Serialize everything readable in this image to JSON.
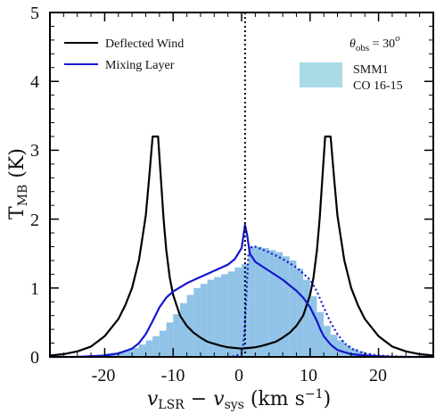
{
  "chart_data": {
    "type": "line",
    "xlabel": "v_LSR − v_sys (km s⁻¹)",
    "ylabel": "T_MB (K)",
    "xlim": [
      -28,
      28
    ],
    "ylim": [
      0,
      5
    ],
    "x_ticks": [
      -20,
      -10,
      0,
      10,
      20
    ],
    "y_ticks": [
      0,
      1,
      2,
      3,
      4,
      5
    ],
    "vline_x": 0.5,
    "annotation": "θ_obs = 30°",
    "legend": [
      {
        "name": "Deflected Wind",
        "color": "#000000",
        "style": "line"
      },
      {
        "name": "Mixing Layer",
        "color": "#1515d0",
        "style": "line"
      },
      {
        "name": "SMM1\nCO 16-15",
        "color": "#9ccfe6",
        "style": "patch"
      }
    ],
    "legend_patch_label_1": "SMM1",
    "legend_patch_label_2": "CO 16-15",
    "histogram": {
      "name": "SMM1 CO 16-15",
      "color": "#7db9e3",
      "bin_width": 1.0,
      "bins_left": [
        -24,
        -23,
        -22,
        -21,
        -20,
        -19,
        -18,
        -17,
        -16,
        -15,
        -14,
        -13,
        -12,
        -11,
        -10,
        -9,
        -8,
        -7,
        -6,
        -5,
        -4,
        -3,
        -2,
        -1,
        0,
        1,
        2,
        3,
        4,
        5,
        6,
        7,
        8,
        9,
        10,
        11,
        12,
        13,
        14,
        15,
        16,
        17,
        18,
        19,
        20,
        21,
        22,
        23
      ],
      "values": [
        0.0,
        0.01,
        0.02,
        0.03,
        0.05,
        0.06,
        0.08,
        0.1,
        0.13,
        0.18,
        0.24,
        0.3,
        0.38,
        0.5,
        0.62,
        0.78,
        0.9,
        1.0,
        1.06,
        1.12,
        1.16,
        1.2,
        1.24,
        1.3,
        1.35,
        1.6,
        1.6,
        1.58,
        1.55,
        1.52,
        1.46,
        1.4,
        1.28,
        1.12,
        0.88,
        0.65,
        0.45,
        0.32,
        0.24,
        0.17,
        0.12,
        0.08,
        0.05,
        0.03,
        0.02,
        0.01,
        0.0,
        0.0
      ]
    },
    "series": [
      {
        "name": "Deflected Wind",
        "color": "#000000",
        "dash": "none",
        "x": [
          -28,
          -26,
          -24,
          -22,
          -20,
          -18,
          -17,
          -16,
          -15,
          -14,
          -13.5,
          -13,
          -12.6,
          -12.2,
          -11.8,
          -11.4,
          -11,
          -10.5,
          -10,
          -9,
          -8,
          -7,
          -6,
          -5,
          -4,
          -3,
          -2,
          -1,
          0,
          1,
          2,
          3,
          4,
          5,
          6,
          7,
          8,
          9,
          10,
          10.5,
          11,
          11.4,
          11.8,
          12.2,
          12.6,
          13,
          13.5,
          14,
          15,
          16,
          17,
          18,
          20,
          22,
          24,
          26,
          28
        ],
        "y": [
          0.02,
          0.04,
          0.08,
          0.15,
          0.3,
          0.55,
          0.75,
          1.0,
          1.4,
          2.05,
          2.6,
          3.2,
          3.2,
          3.2,
          2.6,
          2.0,
          1.55,
          1.15,
          0.9,
          0.6,
          0.45,
          0.35,
          0.28,
          0.22,
          0.19,
          0.16,
          0.14,
          0.13,
          0.12,
          0.13,
          0.14,
          0.16,
          0.19,
          0.22,
          0.28,
          0.35,
          0.45,
          0.6,
          0.9,
          1.15,
          1.55,
          2.0,
          2.6,
          3.2,
          3.2,
          3.2,
          2.6,
          2.05,
          1.4,
          1.0,
          0.75,
          0.55,
          0.3,
          0.15,
          0.08,
          0.04,
          0.02
        ]
      },
      {
        "name": "Mixing Layer",
        "color": "#1515d0",
        "dash": "none",
        "x": [
          -28,
          -24,
          -22,
          -20,
          -18,
          -16,
          -15,
          -14,
          -13,
          -12,
          -11,
          -10,
          -8,
          -6,
          -4,
          -2,
          -1,
          0,
          0.3,
          0.5,
          0.8,
          1.2,
          2,
          4,
          6,
          8,
          9,
          10,
          11,
          11.5,
          12,
          13,
          14,
          16,
          18,
          20,
          22,
          24,
          28
        ],
        "y": [
          0.0,
          0.0,
          0.01,
          0.02,
          0.05,
          0.12,
          0.2,
          0.33,
          0.52,
          0.72,
          0.86,
          0.95,
          1.07,
          1.16,
          1.25,
          1.34,
          1.42,
          1.58,
          1.78,
          1.92,
          1.78,
          1.5,
          1.38,
          1.25,
          1.12,
          0.96,
          0.86,
          0.72,
          0.52,
          0.4,
          0.3,
          0.18,
          0.1,
          0.04,
          0.02,
          0.01,
          0.0,
          0.0,
          0.0
        ]
      },
      {
        "name": "Mixing Layer (receding)",
        "color": "#1515d0",
        "dash": "2,3",
        "x": [
          -2,
          -1,
          0,
          0.2,
          0.4,
          0.6,
          0.8,
          1,
          1.5,
          2,
          4,
          6,
          8,
          10,
          11,
          12,
          13,
          14,
          15,
          16,
          18,
          20,
          22,
          24
        ],
        "y": [
          0.0,
          0.01,
          0.05,
          0.15,
          0.35,
          0.7,
          1.1,
          1.5,
          1.6,
          1.6,
          1.52,
          1.42,
          1.3,
          1.12,
          0.95,
          0.72,
          0.5,
          0.33,
          0.2,
          0.12,
          0.05,
          0.02,
          0.01,
          0.0
        ]
      }
    ]
  }
}
